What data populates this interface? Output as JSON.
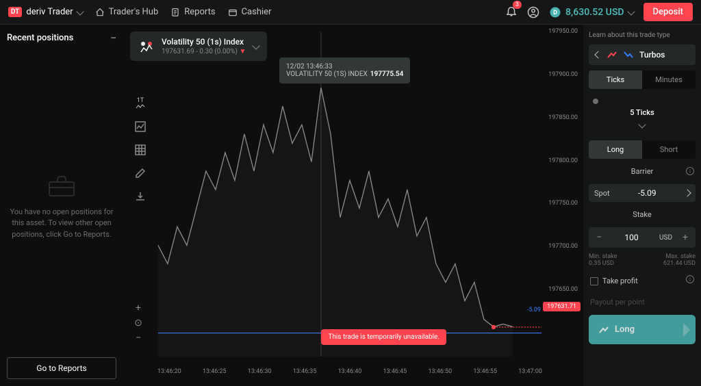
{
  "header": {
    "logo_badge": "DT",
    "logo_text": "deriv Trader",
    "nav": [
      {
        "label": "Trader's Hub"
      },
      {
        "label": "Reports"
      },
      {
        "label": "Cashier"
      }
    ],
    "notif_count": "3",
    "balance": "8,630.52 USD",
    "deposit": "Deposit"
  },
  "left": {
    "title": "Recent positions",
    "empty_text": "You have no open positions for this asset. To view other open positions, click Go to Reports.",
    "reports_btn": "Go to Reports"
  },
  "instrument": {
    "name": "Volatility 50 (1s) Index",
    "price": "197631.69",
    "change": "- 0.30 (0.00%)"
  },
  "tooltip": {
    "time": "12/02 13:46:33",
    "series": "VOLATILITY 50 (1S) INDEX",
    "value": "197775.54"
  },
  "chart": {
    "type": "line",
    "line_color": "#8a8a8a",
    "background_color": "#0e0e0e",
    "grid_color": "#1f1f1f",
    "vertical_rule_color": "#3a3a3a",
    "current_price": "197631.71",
    "current_price_tag_color": "#ff444f",
    "barrier_value": "-5.09",
    "barrier_line_color": "#377cfc",
    "dotted_line_color": "#ff444f",
    "marker_color": "#ff444f",
    "ylim": [
      197600,
      197950
    ],
    "y_ticks": [
      "197950.00",
      "197900.00",
      "197850.00",
      "197800.00",
      "197750.00",
      "197700.00",
      "197650.00"
    ],
    "x_ticks": [
      "13:46:20",
      "13:46:25",
      "13:46:30",
      "13:46:35",
      "13:46:40",
      "13:46:45",
      "13:46:50",
      "13:46:55",
      "13:47:00"
    ],
    "points": [
      [
        0,
        197720
      ],
      [
        2,
        197700
      ],
      [
        4,
        197740
      ],
      [
        6,
        197720
      ],
      [
        8,
        197760
      ],
      [
        10,
        197800
      ],
      [
        12,
        197780
      ],
      [
        14,
        197820
      ],
      [
        16,
        197790
      ],
      [
        18,
        197840
      ],
      [
        20,
        197800
      ],
      [
        22,
        197850
      ],
      [
        24,
        197820
      ],
      [
        26,
        197870
      ],
      [
        28,
        197830
      ],
      [
        30,
        197850
      ],
      [
        32,
        197810
      ],
      [
        34,
        197890
      ],
      [
        36,
        197840
      ],
      [
        38,
        197750
      ],
      [
        40,
        197790
      ],
      [
        42,
        197760
      ],
      [
        44,
        197800
      ],
      [
        46,
        197750
      ],
      [
        48,
        197770
      ],
      [
        50,
        197740
      ],
      [
        52,
        197780
      ],
      [
        54,
        197730
      ],
      [
        56,
        197750
      ],
      [
        58,
        197700
      ],
      [
        60,
        197680
      ],
      [
        62,
        197700
      ],
      [
        64,
        197660
      ],
      [
        66,
        197680
      ],
      [
        68,
        197640
      ],
      [
        70,
        197632
      ],
      [
        72,
        197635
      ],
      [
        74,
        197632
      ]
    ]
  },
  "error": "This trade is temporarily unavailable.",
  "right": {
    "learn": "Learn about this trade type",
    "trade_type": "Turbos",
    "tabs": {
      "ticks": "Ticks",
      "minutes": "Minutes"
    },
    "ticks_value": "5 Ticks",
    "direction": {
      "long": "Long",
      "short": "Short"
    },
    "barrier_title": "Barrier",
    "spot_label": "Spot",
    "barrier_value": "-5.09",
    "stake_title": "Stake",
    "stake_value": "100",
    "stake_unit": "USD",
    "min_stake_label": "Min. stake",
    "min_stake": "0.35 USD",
    "max_stake_label": "Max. stake",
    "max_stake": "621.44 USD",
    "take_profit": "Take profit",
    "payout_label": "Payout per point",
    "action": "Long"
  },
  "colors": {
    "accent_red": "#ff444f",
    "accent_teal": "#4bb4b3",
    "accent_blue": "#377cfc"
  }
}
